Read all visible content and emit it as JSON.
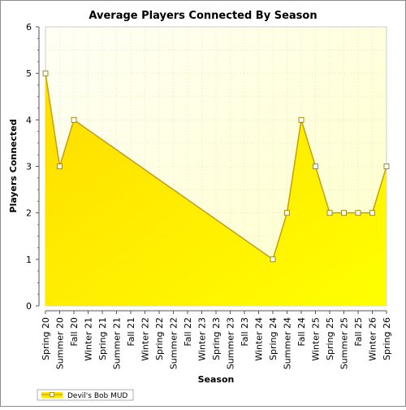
{
  "chart_data": {
    "type": "area",
    "title": "Average Players Connected By Season",
    "xlabel": "Season",
    "ylabel": "Players Connected",
    "ylim": [
      0,
      6
    ],
    "y_ticks": [
      "0",
      "1",
      "2",
      "3",
      "4",
      "5",
      "6"
    ],
    "categories": [
      "Spring 20",
      "Summer 20",
      "Fall 20",
      "Winter 21",
      "Spring 21",
      "Summer 21",
      "Fall 21",
      "Winter 22",
      "Spring 22",
      "Summer 22",
      "Fall 22",
      "Winter 23",
      "Spring 23",
      "Summer 23",
      "Fall 23",
      "Winter 24",
      "Spring 24",
      "Summer 24",
      "Fall 24",
      "Winter 25",
      "Spring 25",
      "Summer 25",
      "Fall 25",
      "Winter 26",
      "Spring 26"
    ],
    "series": [
      {
        "name": "Devil's Bob MUD",
        "points": [
          {
            "category": "Spring 20",
            "value": 5
          },
          {
            "category": "Summer 20",
            "value": 3
          },
          {
            "category": "Fall 20",
            "value": 4
          },
          {
            "category": "Spring 24",
            "value": 1
          },
          {
            "category": "Summer 24",
            "value": 2
          },
          {
            "category": "Fall 24",
            "value": 4
          },
          {
            "category": "Winter 25",
            "value": 3
          },
          {
            "category": "Spring 25",
            "value": 2
          },
          {
            "category": "Summer 25",
            "value": 2
          },
          {
            "category": "Fall 25",
            "value": 2
          },
          {
            "category": "Winter 26",
            "value": 2
          },
          {
            "category": "Spring 26",
            "value": 3
          }
        ]
      }
    ],
    "grid": true,
    "legend": "bottom-left",
    "colors": {
      "area_top": "#ffdc00",
      "area_bottom": "#ffff00",
      "line": "#c8a000",
      "plot_bg_top": "#fffff0",
      "plot_bg_bottom": "#ffffc8"
    }
  }
}
